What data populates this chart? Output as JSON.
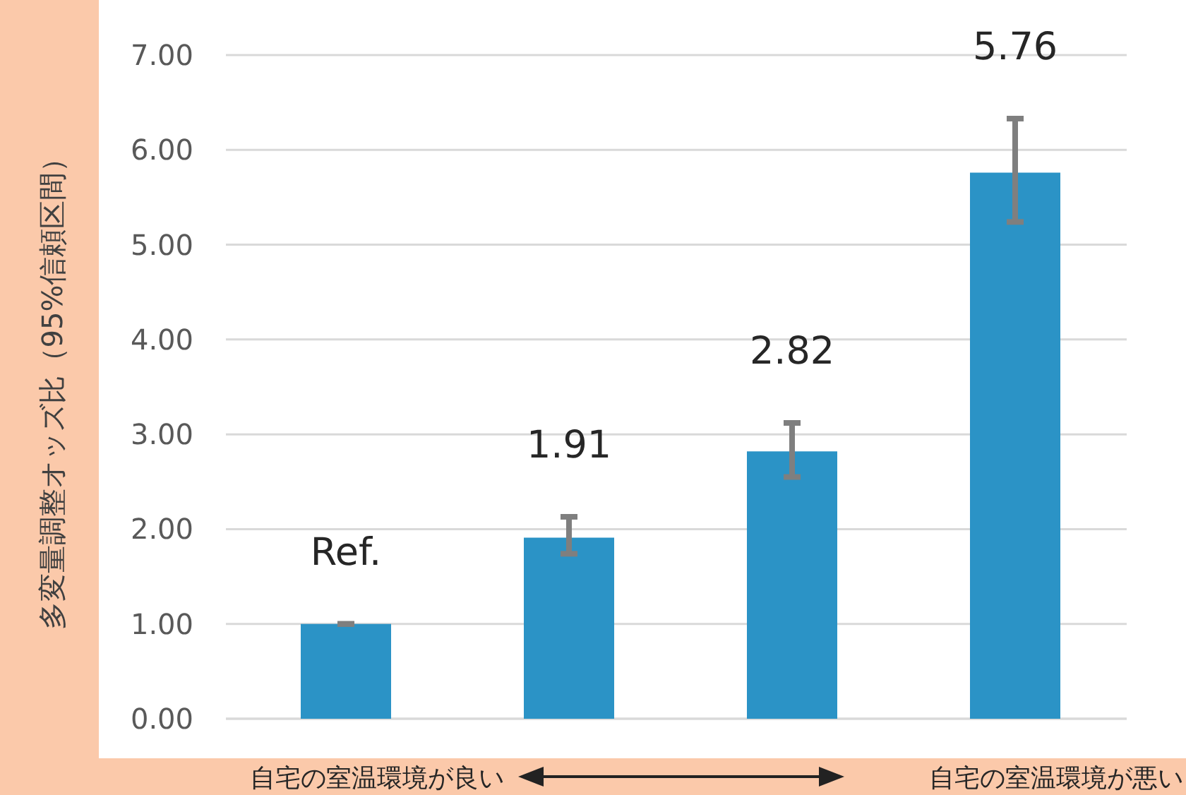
{
  "chart_data": {
    "type": "bar",
    "ylabel": "多変量調整オッズ比（95%信頼区間）",
    "categories": [
      null,
      null,
      null,
      null
    ],
    "values": [
      1.0,
      1.91,
      2.82,
      5.76
    ],
    "color": "#2b93c6",
    "errors": [
      [
        1.0,
        1.0
      ],
      [
        1.74,
        2.13
      ],
      [
        2.55,
        3.12
      ],
      [
        5.24,
        6.33
      ]
    ],
    "value_labels": [
      "Ref.",
      "1.91",
      "2.82",
      "5.76"
    ],
    "ylim": [
      0,
      7
    ],
    "yticks": [
      {
        "value": 0,
        "label": "0.00"
      },
      {
        "value": 1,
        "label": "1.00"
      },
      {
        "value": 2,
        "label": "2.00"
      },
      {
        "value": 3,
        "label": "3.00"
      },
      {
        "value": 4,
        "label": "4.00"
      },
      {
        "value": 5,
        "label": "5.00"
      },
      {
        "value": 6,
        "label": "6.00"
      },
      {
        "value": 7,
        "label": "7.00"
      }
    ],
    "grid": "y",
    "annotations": [
      "自宅の室温環境が良い",
      "自宅の室温環境が悪い"
    ]
  }
}
